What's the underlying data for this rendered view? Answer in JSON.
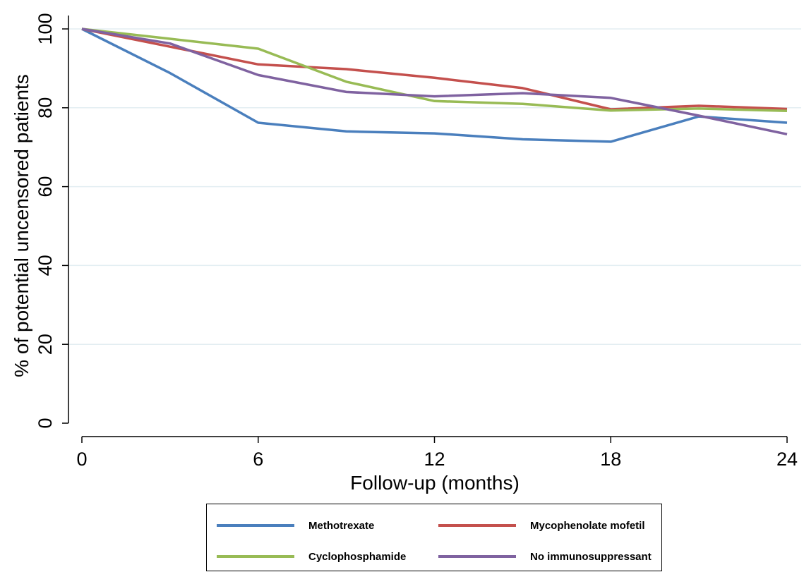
{
  "chart_data": {
    "type": "line",
    "title": "",
    "xlabel": "Follow-up (months)",
    "ylabel": "% of potential uncensored patients",
    "xlim": [
      0,
      24
    ],
    "ylim": [
      0,
      100
    ],
    "xticks": [
      0,
      6,
      12,
      18,
      24
    ],
    "yticks": [
      0,
      20,
      40,
      60,
      80,
      100
    ],
    "grid": true,
    "legend_position": "bottom",
    "x": [
      0,
      3,
      6,
      9,
      12,
      15,
      18,
      21,
      24
    ],
    "series": [
      {
        "name": "Methotrexate",
        "color": "#4a7fbd",
        "values": [
          100,
          88.8,
          76.2,
          74.0,
          73.5,
          72.0,
          71.4,
          77.8,
          76.2
        ]
      },
      {
        "name": "Mycophenolate mofetil",
        "color": "#c4504d",
        "values": [
          100,
          95.5,
          91.0,
          89.8,
          87.6,
          85.0,
          79.6,
          80.5,
          79.7
        ]
      },
      {
        "name": "Cyclophosphamide",
        "color": "#98bb55",
        "values": [
          100,
          97.5,
          95.0,
          86.6,
          81.7,
          81.0,
          79.3,
          79.8,
          79.2
        ]
      },
      {
        "name": "No immunosuppressant",
        "color": "#7f62a0",
        "values": [
          100,
          96.3,
          88.3,
          84.0,
          82.9,
          83.7,
          82.5,
          78.0,
          73.3
        ]
      }
    ]
  }
}
